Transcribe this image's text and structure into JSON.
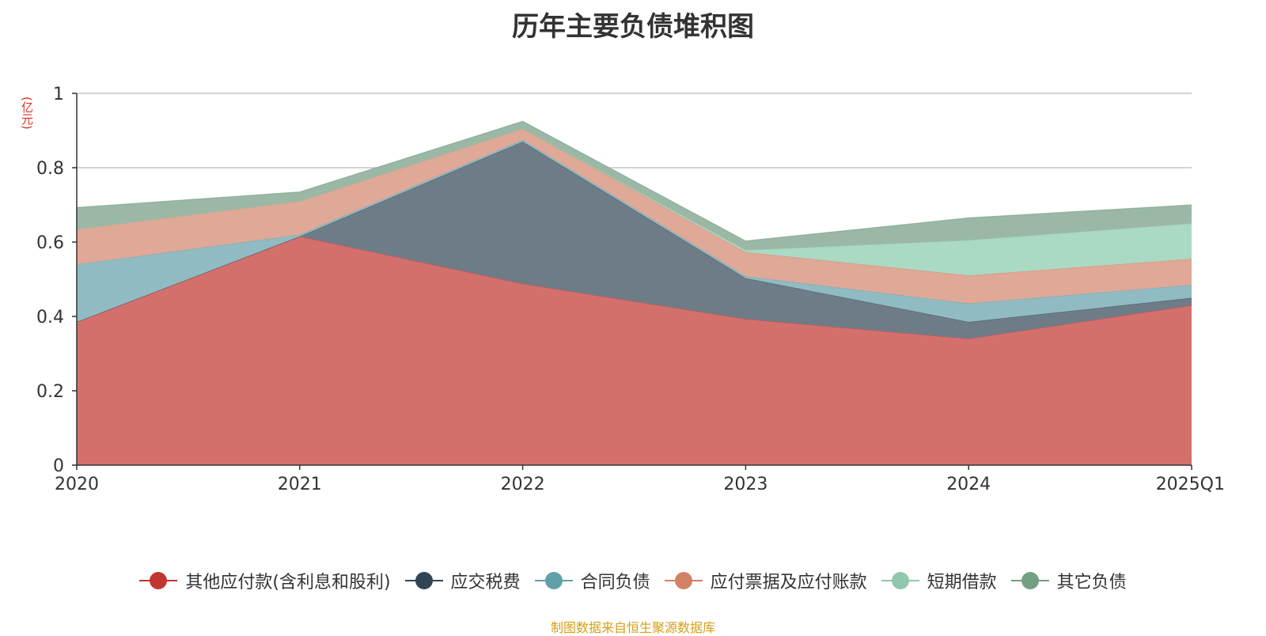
{
  "chart_data": {
    "type": "area",
    "stacked": true,
    "title": "历年主要负债堆积图",
    "ylabel": "(亿元)",
    "xlabel": "",
    "ylim": [
      0,
      1
    ],
    "yticks": [
      "0",
      "0.2",
      "0.4",
      "0.6",
      "0.8",
      "1"
    ],
    "categories": [
      "2020",
      "2021",
      "2022",
      "2023",
      "2024",
      "2025Q1"
    ],
    "series": [
      {
        "name": "其他应付款(含利息和股利)",
        "color": "#c23531",
        "fill": "#d4706c",
        "values": [
          0.385,
          0.615,
          0.488,
          0.393,
          0.34,
          0.43
        ]
      },
      {
        "name": "应交税费",
        "color": "#2f4554",
        "fill": "#6e7c88",
        "values": [
          0.0,
          0.0,
          0.382,
          0.11,
          0.045,
          0.02
        ]
      },
      {
        "name": "合同负债",
        "color": "#61a0a8",
        "fill": "#90bbc3",
        "values": [
          0.155,
          0.005,
          0.005,
          0.005,
          0.05,
          0.035
        ]
      },
      {
        "name": "应付票据及应付账款",
        "color": "#d48265",
        "fill": "#e0a896",
        "values": [
          0.095,
          0.09,
          0.03,
          0.065,
          0.075,
          0.07
        ]
      },
      {
        "name": "短期借款",
        "color": "#91c7ae",
        "fill": "#aad9c4",
        "values": [
          0.0,
          0.0,
          0.0,
          0.005,
          0.095,
          0.095
        ]
      },
      {
        "name": "其它负债",
        "color": "#749f83",
        "fill": "#9bb8a6",
        "values": [
          0.058,
          0.025,
          0.02,
          0.025,
          0.06,
          0.05
        ]
      }
    ],
    "legend_position": "bottom",
    "grid": true
  },
  "source_note": "制图数据来自恒生聚源数据库"
}
